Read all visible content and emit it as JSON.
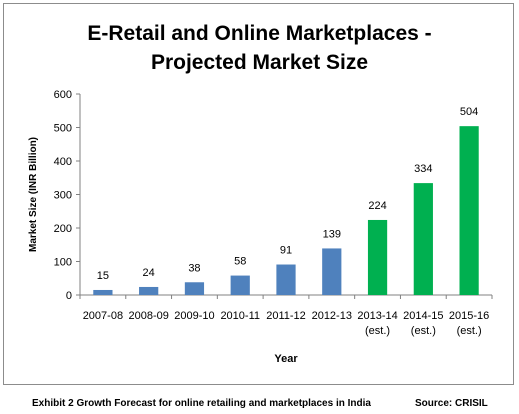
{
  "chart_data": {
    "type": "bar",
    "title_lines": [
      "E-Retail and Online Marketplaces -",
      "Projected Market Size"
    ],
    "xlabel": "Year",
    "ylabel": "Market Size (INR Billion)",
    "ylim": [
      0,
      600
    ],
    "yticks": [
      0,
      100,
      200,
      300,
      400,
      500,
      600
    ],
    "categories": [
      [
        "2007-08"
      ],
      [
        "2008-09"
      ],
      [
        "2009-10"
      ],
      [
        "2010-11"
      ],
      [
        "2011-12"
      ],
      [
        "2012-13"
      ],
      [
        "2013-14",
        "(est.)"
      ],
      [
        "2014-15",
        "(est.)"
      ],
      [
        "2015-16",
        "(est.)"
      ]
    ],
    "values": [
      15,
      24,
      38,
      58,
      91,
      139,
      224,
      334,
      504
    ],
    "colors": {
      "actual": "#4f81bd",
      "estimated": "#00b050"
    },
    "estimated_flags": [
      false,
      false,
      false,
      false,
      false,
      false,
      true,
      true,
      true
    ],
    "grid": false,
    "legend": "none"
  },
  "caption": "Exhibit 2 Growth Forecast for online retailing and marketplaces in India",
  "source": "Source: CRISIL"
}
